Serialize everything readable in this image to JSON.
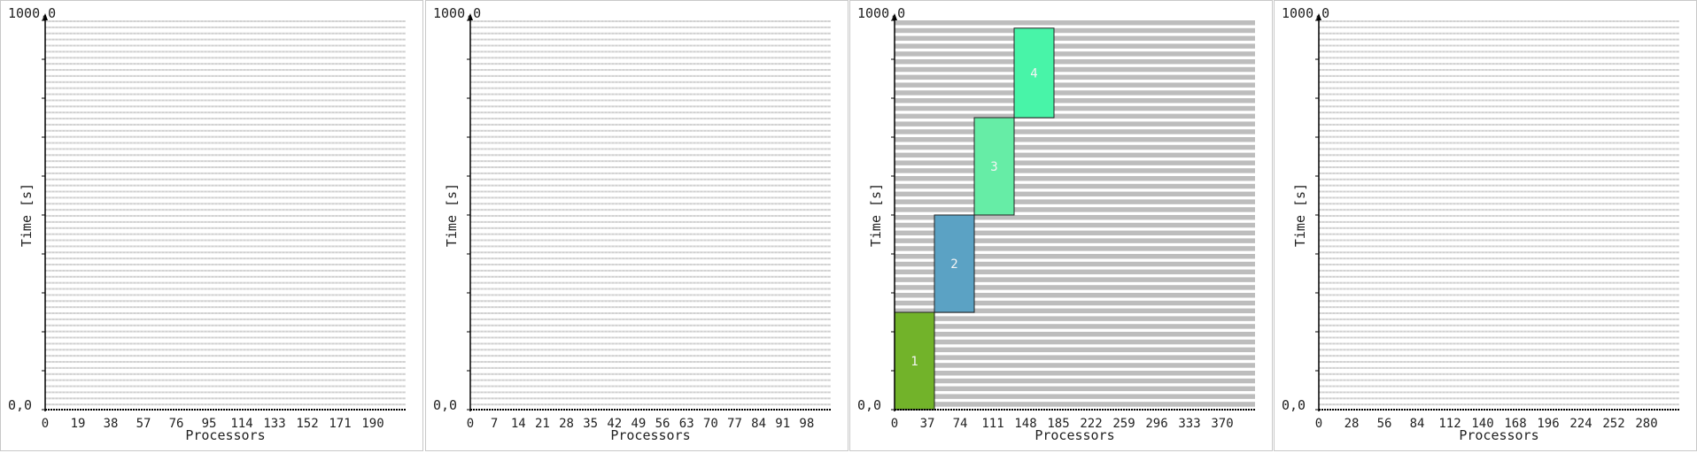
{
  "chart_data": [
    {
      "type": "gantt",
      "ylabel": "Time [s]",
      "xlabel": "Processors",
      "y_top_label": "1000,0",
      "y_bottom_label": "0,0",
      "ylim": [
        0,
        1000
      ],
      "xlim": [
        0,
        209
      ],
      "x_ticks": [
        0,
        19,
        38,
        57,
        76,
        95,
        114,
        133,
        152,
        171,
        190
      ],
      "rows": 64,
      "row_style": "light",
      "jobs": []
    },
    {
      "type": "gantt",
      "ylabel": "Time [s]",
      "xlabel": "Processors",
      "y_top_label": "1000,0",
      "y_bottom_label": "0,0",
      "ylim": [
        0,
        1000
      ],
      "xlim": [
        0,
        105
      ],
      "x_ticks": [
        0,
        7,
        14,
        21,
        28,
        35,
        42,
        49,
        56,
        63,
        70,
        77,
        84,
        91,
        98
      ],
      "rows": 64,
      "row_style": "light",
      "jobs": []
    },
    {
      "type": "gantt",
      "ylabel": "Time [s]",
      "xlabel": "Processors",
      "y_top_label": "1000,0",
      "y_bottom_label": "0,0",
      "ylim": [
        0,
        1000
      ],
      "xlim": [
        0,
        407
      ],
      "x_ticks": [
        0,
        37,
        74,
        111,
        148,
        185,
        222,
        259,
        296,
        333,
        370
      ],
      "rows": 50,
      "row_style": "dark",
      "jobs": [
        {
          "label": "1",
          "start": 0,
          "end": 250,
          "proc_start": 0,
          "proc_end": 45,
          "color": "#72b32a"
        },
        {
          "label": "2",
          "start": 250,
          "end": 500,
          "proc_start": 45,
          "proc_end": 90,
          "color": "#5ba2c4"
        },
        {
          "label": "3",
          "start": 500,
          "end": 750,
          "proc_start": 90,
          "proc_end": 135,
          "color": "#66eda6"
        },
        {
          "label": "4",
          "start": 750,
          "end": 980,
          "proc_start": 135,
          "proc_end": 180,
          "color": "#48f4a8"
        }
      ]
    },
    {
      "type": "gantt",
      "ylabel": "Time [s]",
      "xlabel": "Processors",
      "y_top_label": "1000,0",
      "y_bottom_label": "0,0",
      "ylim": [
        0,
        1000
      ],
      "xlim": [
        0,
        308
      ],
      "x_ticks": [
        0,
        28,
        56,
        84,
        112,
        140,
        168,
        196,
        224,
        252,
        280
      ],
      "rows": 64,
      "row_style": "light",
      "jobs": []
    }
  ]
}
